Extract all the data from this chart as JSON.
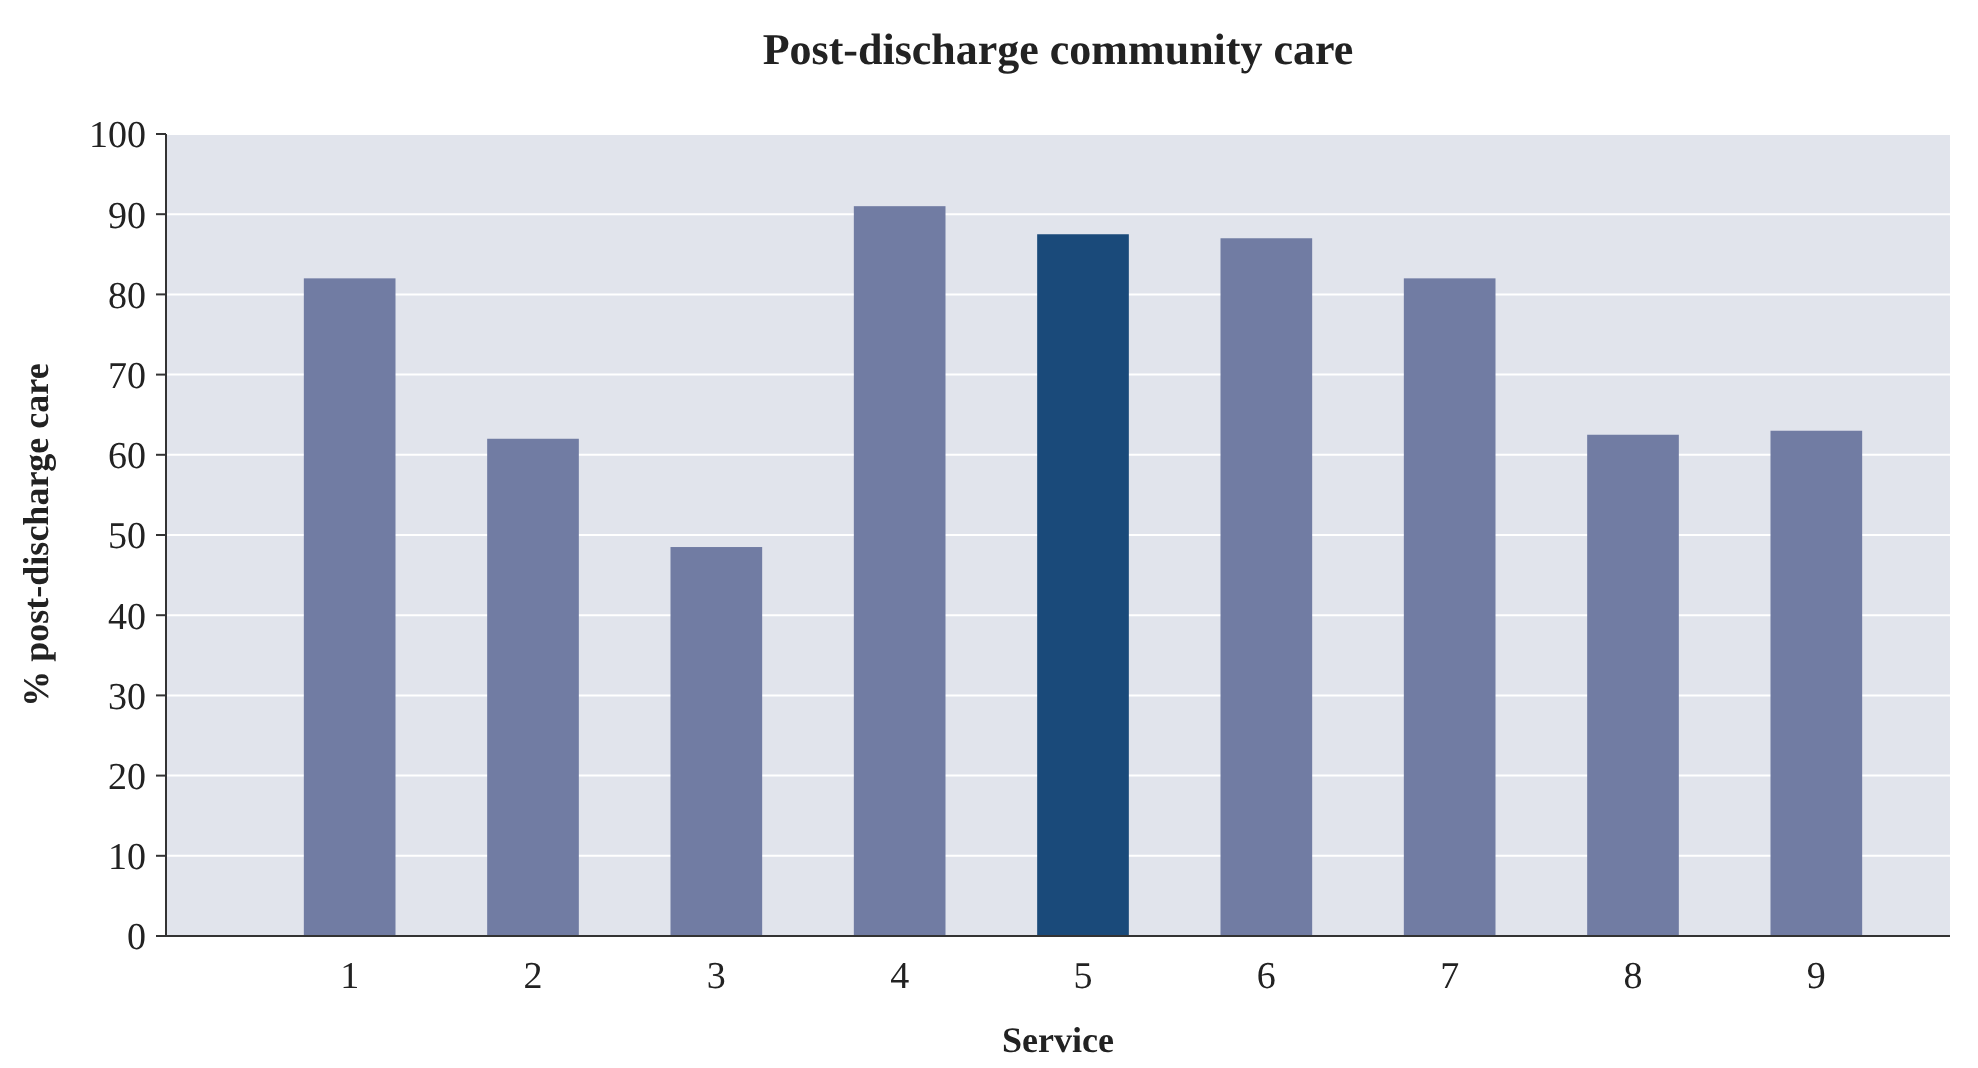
{
  "chart_data": {
    "type": "bar",
    "title": "Post-discharge community care",
    "xlabel": "Service",
    "ylabel": "% post-discharge care",
    "categories": [
      "1",
      "2",
      "3",
      "4",
      "5",
      "6",
      "7",
      "8",
      "9"
    ],
    "values": [
      82,
      62,
      48.5,
      91,
      87.5,
      87,
      82,
      62.5,
      63
    ],
    "colors": [
      "#717ca3",
      "#717ca3",
      "#717ca3",
      "#717ca3",
      "#1a4a7a",
      "#717ca3",
      "#717ca3",
      "#717ca3",
      "#717ca3"
    ],
    "ylim": [
      0,
      100
    ],
    "yticks": [
      0,
      10,
      20,
      30,
      40,
      50,
      60,
      70,
      80,
      90,
      100
    ],
    "grid": "y"
  }
}
